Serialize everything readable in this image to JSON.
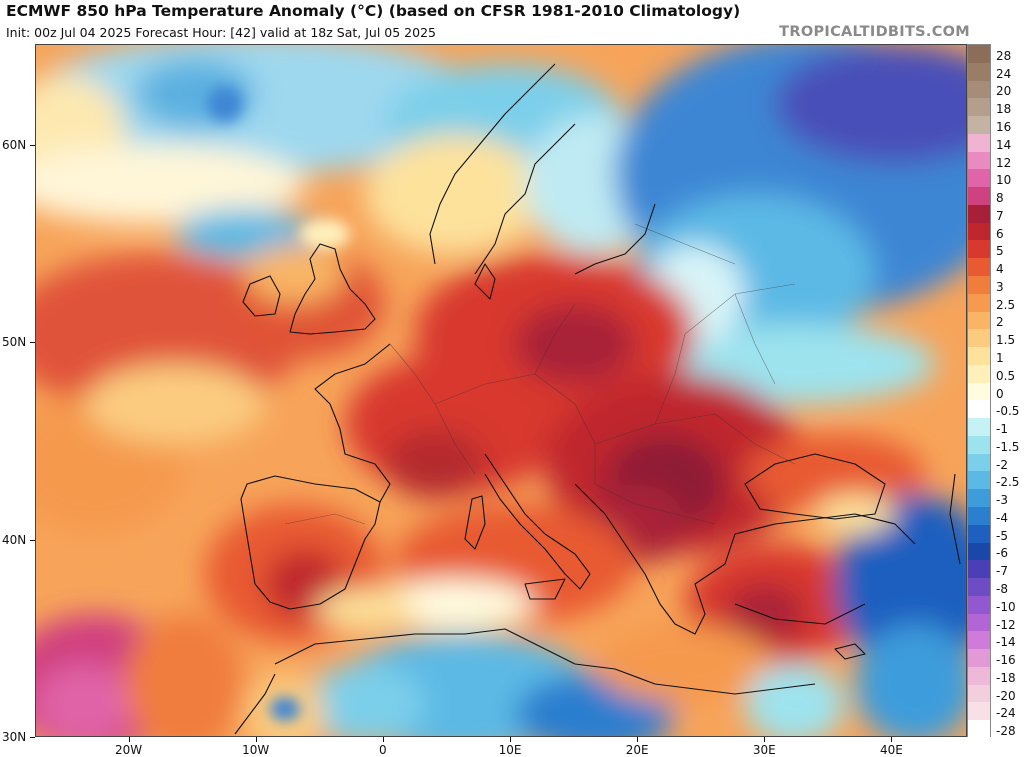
{
  "header": {
    "title": "ECMWF 850 hPa Temperature Anomaly (°C) (based on CFSR 1981-2010 Climatology)",
    "subtitle": "Init: 00z Jul 04 2025   Forecast Hour: [42]   valid at 18z Sat, Jul 05 2025",
    "watermark": "TROPICALTIDBITS.COM"
  },
  "map": {
    "lat_labels": [
      "60N",
      "50N",
      "40N",
      "30N"
    ],
    "lon_labels": [
      "20W",
      "10W",
      "0",
      "10E",
      "20E",
      "30E",
      "40E"
    ],
    "lat_values": [
      60,
      50,
      40,
      30
    ],
    "lon_values": [
      -20,
      -10,
      0,
      10,
      20,
      30,
      40
    ],
    "lat_range": [
      30,
      65
    ],
    "lon_range": [
      -25,
      45
    ]
  },
  "colorbar": {
    "labels": [
      "28",
      "24",
      "20",
      "18",
      "16",
      "14",
      "12",
      "10",
      "8",
      "7",
      "6",
      "5",
      "4",
      "3",
      "2.5",
      "2",
      "1.5",
      "1",
      "0.5",
      "0",
      "-0.5",
      "-1",
      "-1.5",
      "-2",
      "-2.5",
      "-3",
      "-4",
      "-5",
      "-6",
      "-7",
      "-8",
      "-10",
      "-12",
      "-14",
      "-16",
      "-18",
      "-20",
      "-24",
      "-28"
    ],
    "colors": [
      "#8c6d57",
      "#9a7d66",
      "#a68d77",
      "#b39f8c",
      "#c3b3a3",
      "#f0b3d2",
      "#e98bbf",
      "#e064a8",
      "#d0417f",
      "#a82038",
      "#c0262e",
      "#d8382e",
      "#e85a32",
      "#f07d3c",
      "#f59a4e",
      "#f9b565",
      "#fbcc80",
      "#fde29c",
      "#fff0bb",
      "#fffce0",
      "#ffffff",
      "#c6f2f5",
      "#9de3ee",
      "#7ccfea",
      "#5cb9e5",
      "#3e9cdb",
      "#2c7ecf",
      "#1f5fbf",
      "#1a48a8",
      "#4a3fb5",
      "#6e4cc4",
      "#9158cf",
      "#b266d6",
      "#cf7bd9",
      "#e29ad6",
      "#eeb8d9",
      "#f2cfdd",
      "#f7e1e6",
      "#ffffff"
    ]
  }
}
